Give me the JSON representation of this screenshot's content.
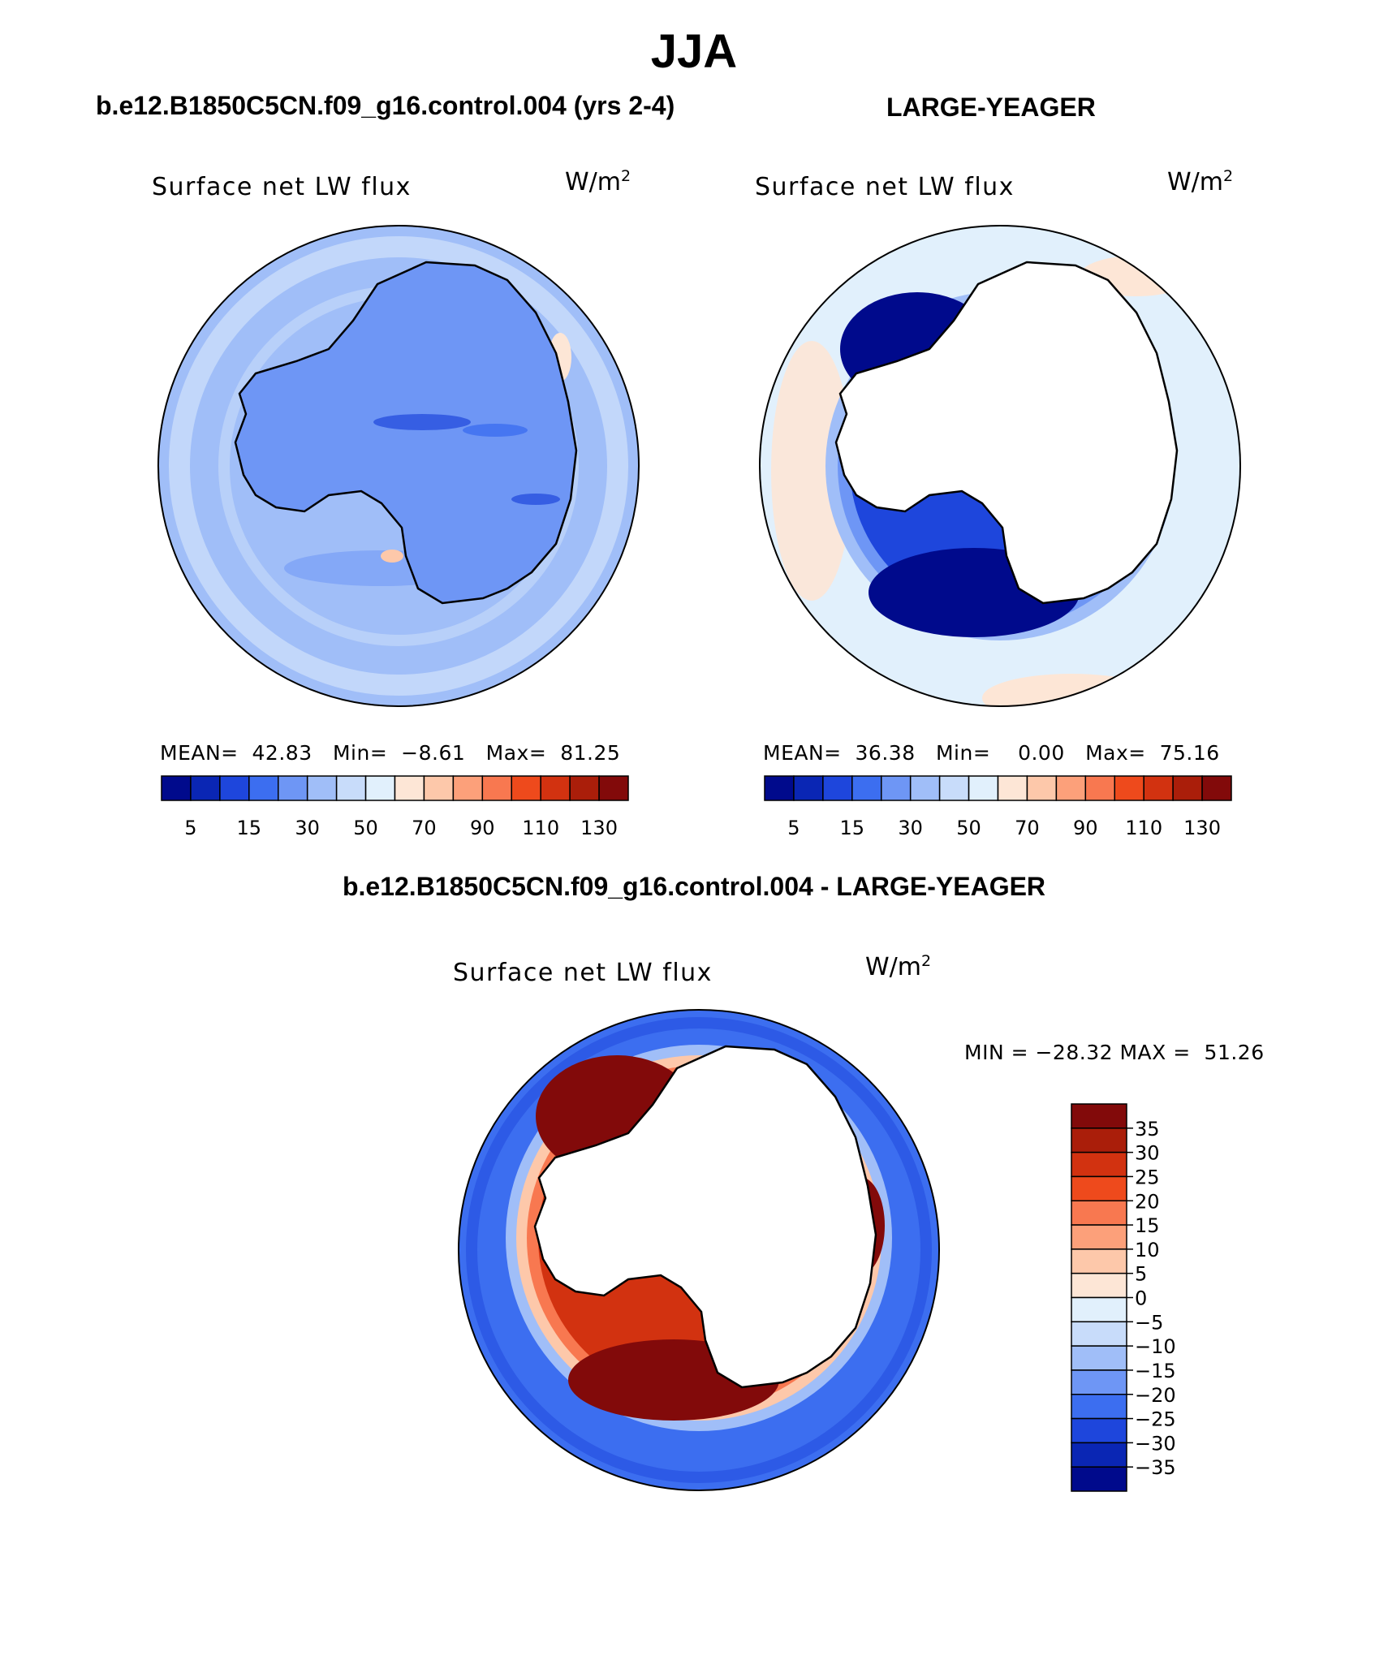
{
  "figure": {
    "title": "JJA",
    "case1_title": "b.e12.B1850C5CN.f09_g16.control.004 (yrs 2-4)",
    "case2_title": "LARGE-YEAGER",
    "diff_title": "b.e12.B1850C5CN.f09_g16.control.004 - LARGE-YEAGER"
  },
  "panels": {
    "case1": {
      "title": "Surface net LW flux",
      "units_base": "W/m",
      "units_exp": "2",
      "mean_label": "MEAN=",
      "mean": "42.83",
      "min_label": "Min=",
      "min": "−8.61",
      "max_label": "Max=",
      "max": "81.25",
      "colorbar_ticks": [
        "5",
        "15",
        "30",
        "50",
        "70",
        "90",
        "110",
        "130"
      ]
    },
    "case2": {
      "title": "Surface net LW flux",
      "units_base": "W/m",
      "units_exp": "2",
      "mean_label": "MEAN=",
      "mean": "36.38",
      "min_label": "Min=",
      "min": "0.00",
      "max_label": "Max=",
      "max": "75.16",
      "colorbar_ticks": [
        "5",
        "15",
        "30",
        "50",
        "70",
        "90",
        "110",
        "130"
      ]
    },
    "diff": {
      "title": "Surface net LW flux",
      "units_base": "W/m",
      "units_exp": "2",
      "minmax_text": "MIN = −28.32 MAX =  51.26",
      "colorbar_ticks": [
        "35",
        "30",
        "25",
        "20",
        "15",
        "10",
        "5",
        "0",
        "−5",
        "−10",
        "−15",
        "−20",
        "−25",
        "−30",
        "−35"
      ]
    }
  },
  "colors": {
    "abs_scale": [
      "#000a8c",
      "#0a26b4",
      "#1e46dc",
      "#3c6ef0",
      "#6e96f5",
      "#a0bef8",
      "#c8dcfa",
      "#e1f0fc",
      "#fde6d6",
      "#fdc8aa",
      "#fca07a",
      "#f87850",
      "#ee4a1c",
      "#d23210",
      "#aa1e0a",
      "#820a0a"
    ],
    "diff_scale_top_to_bottom": [
      "#820a0a",
      "#aa1e0a",
      "#d23210",
      "#ee4a1c",
      "#f87850",
      "#fca07a",
      "#fdc8aa",
      "#fde6d6",
      "#e1f0fc",
      "#c8dcfa",
      "#a0bef8",
      "#6e96f5",
      "#3c6ef0",
      "#1e46dc",
      "#0a26b4",
      "#000a8c"
    ],
    "land": "#ffffff",
    "coast": "#000000"
  }
}
